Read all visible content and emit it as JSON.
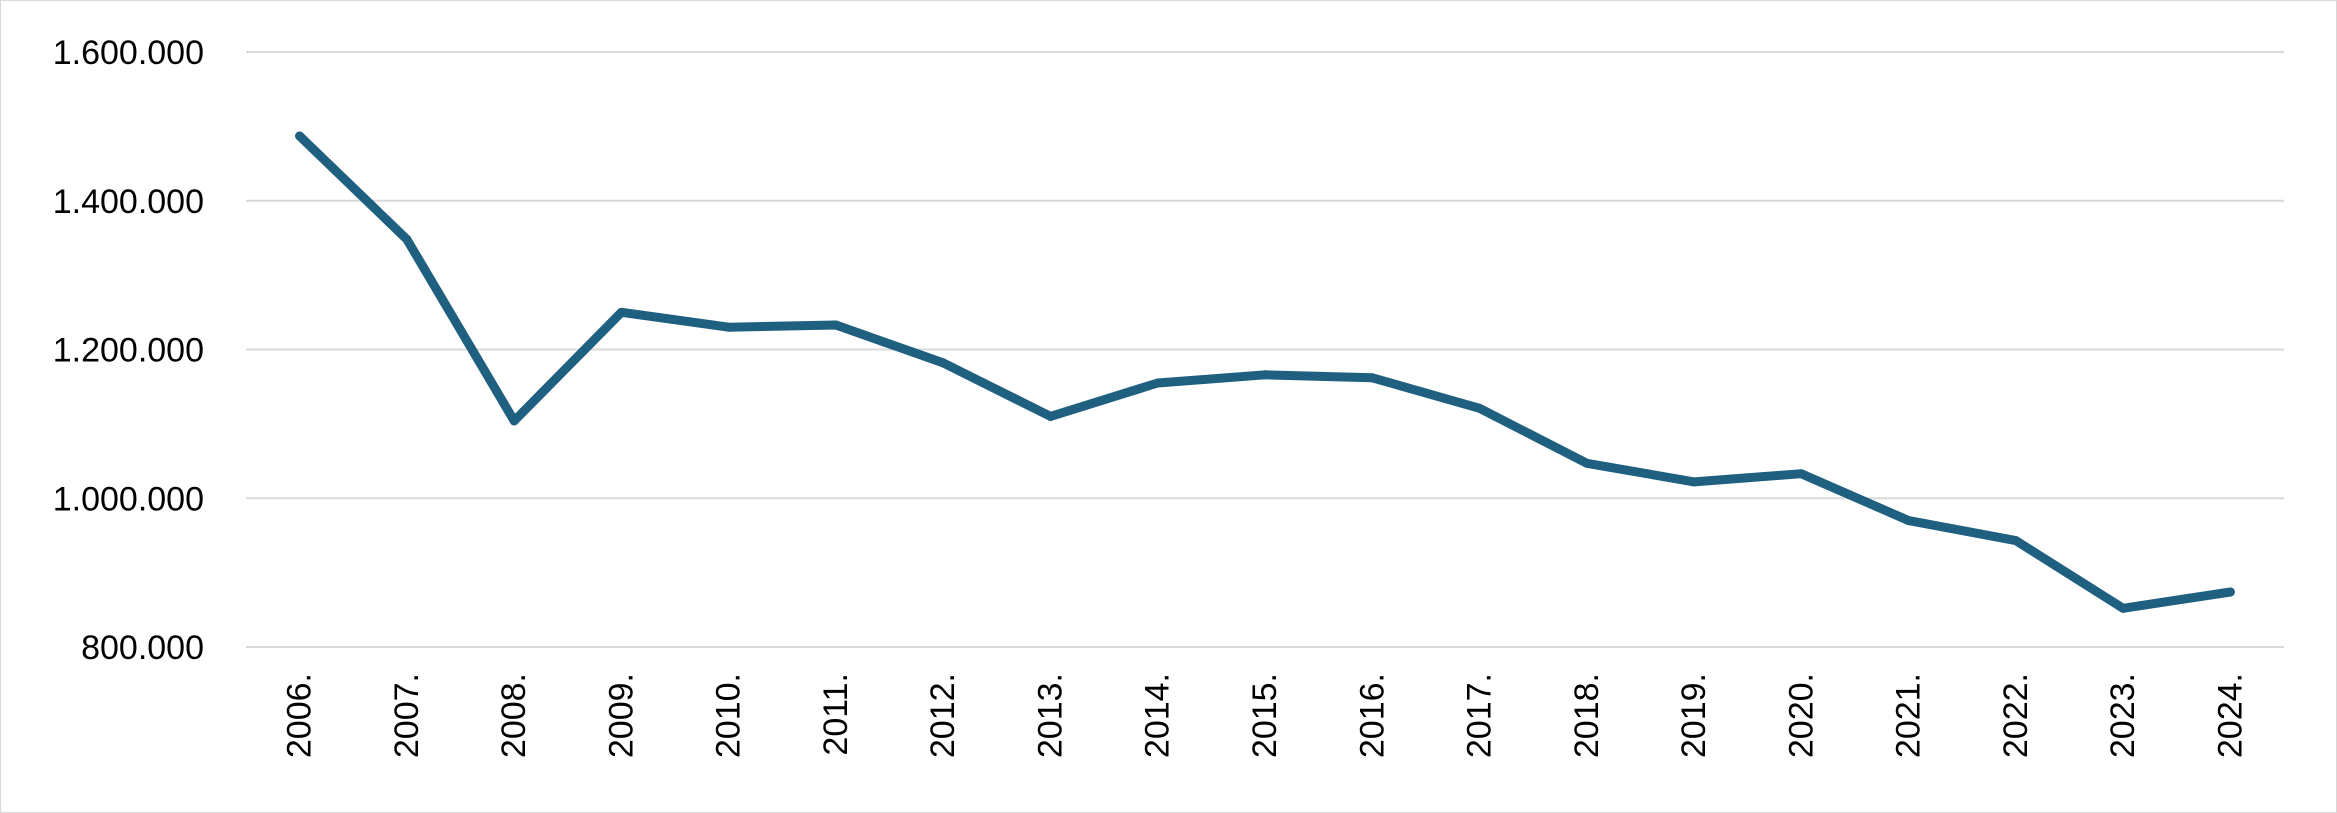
{
  "chart_data": {
    "type": "line",
    "title": "",
    "xlabel": "",
    "ylabel": "",
    "categories": [
      "2006.",
      "2007.",
      "2008.",
      "2009.",
      "2010.",
      "2011.",
      "2012.",
      "2013.",
      "2014.",
      "2015.",
      "2016.",
      "2017.",
      "2018.",
      "2019.",
      "2020.",
      "2021.",
      "2022.",
      "2023.",
      "2024."
    ],
    "series": [
      {
        "values": [
          1487000,
          1348000,
          1104000,
          1250000,
          1230000,
          1233000,
          1182000,
          1110000,
          1155000,
          1166000,
          1162000,
          1121000,
          1047000,
          1022000,
          1033000,
          970000,
          943000,
          852000,
          874000
        ]
      }
    ],
    "ylim": [
      800000,
      1600000
    ],
    "yticks": [
      800000,
      1000000,
      1200000,
      1400000,
      1600000
    ],
    "ytick_labels": [
      "800.000",
      "1.000.000",
      "1.200.000",
      "1.400.000",
      "1.600.000"
    ],
    "grid": true,
    "legend": "none",
    "colors": {
      "series": "#1f5f7f",
      "grid": "#d9d9d9",
      "text": "#000000"
    }
  }
}
